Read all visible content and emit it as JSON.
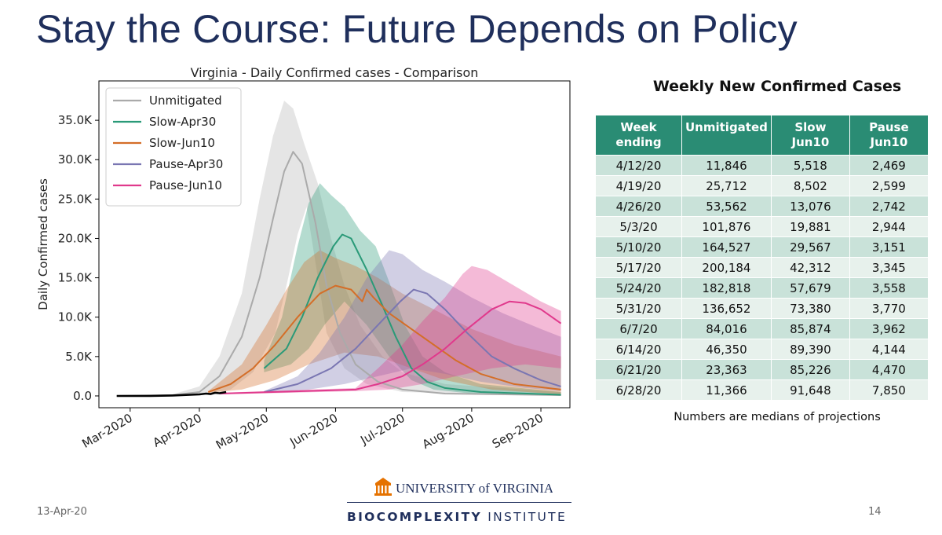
{
  "slide": {
    "title": "Stay the Course: Future Depends on Policy",
    "date": "13-Apr-20",
    "page_number": "14"
  },
  "logo": {
    "university": "UNIVERSITY of VIRGINIA",
    "institute_bold": "BIOCOMPLEXITY",
    "institute_rest": "INSTITUTE",
    "accent": "#e57200",
    "navy": "#1f2f5c"
  },
  "chart_data": {
    "type": "line",
    "title": "Virginia - Daily Confirmed cases - Comparison",
    "xlabel": "",
    "ylabel": "Daily Confirmed cases",
    "ylim": [
      -1500,
      40000
    ],
    "yticks": [
      0,
      5000,
      10000,
      15000,
      20000,
      25000,
      30000,
      35000
    ],
    "ytick_labels": [
      "0.0",
      "5.0K",
      "10.0K",
      "15.0K",
      "20.0K",
      "25.0K",
      "30.0K",
      "35.0K"
    ],
    "xlim": [
      "2020-02-16",
      "2020-09-14"
    ],
    "xticks": [
      "2020-03-01",
      "2020-04-01",
      "2020-05-01",
      "2020-06-01",
      "2020-07-01",
      "2020-08-01",
      "2020-09-01"
    ],
    "xtick_labels": [
      "Mar-2020",
      "Apr-2020",
      "May-2020",
      "Jun-2020",
      "Jul-2020",
      "Aug-2020",
      "Sep-2020"
    ],
    "grid": false,
    "legend": "top-left",
    "series": [
      {
        "name": "Unmitigated",
        "color": "#aaaaaa",
        "median": [
          [
            "2020-02-24",
            0
          ],
          [
            "2020-03-20",
            100
          ],
          [
            "2020-04-01",
            500
          ],
          [
            "2020-04-10",
            2500
          ],
          [
            "2020-04-20",
            7500
          ],
          [
            "2020-04-28",
            15000
          ],
          [
            "2020-05-04",
            22500
          ],
          [
            "2020-05-09",
            28500
          ],
          [
            "2020-05-13",
            31000
          ],
          [
            "2020-05-17",
            29500
          ],
          [
            "2020-05-23",
            22000
          ],
          [
            "2020-05-28",
            14000
          ],
          [
            "2020-06-03",
            8000
          ],
          [
            "2020-06-10",
            4000
          ],
          [
            "2020-06-20",
            1800
          ],
          [
            "2020-07-01",
            800
          ],
          [
            "2020-07-20",
            300
          ],
          [
            "2020-09-10",
            100
          ]
        ],
        "upper": [
          [
            "2020-02-24",
            0
          ],
          [
            "2020-03-20",
            200
          ],
          [
            "2020-04-01",
            1200
          ],
          [
            "2020-04-10",
            5000
          ],
          [
            "2020-04-20",
            13000
          ],
          [
            "2020-04-28",
            25000
          ],
          [
            "2020-05-04",
            33000
          ],
          [
            "2020-05-09",
            37500
          ],
          [
            "2020-05-13",
            36500
          ],
          [
            "2020-05-18",
            32000
          ],
          [
            "2020-05-24",
            27000
          ],
          [
            "2020-05-30",
            20000
          ],
          [
            "2020-06-05",
            14000
          ],
          [
            "2020-06-12",
            9000
          ],
          [
            "2020-06-22",
            5000
          ],
          [
            "2020-07-01",
            3000
          ],
          [
            "2020-07-20",
            1500
          ],
          [
            "2020-09-10",
            500
          ]
        ],
        "lower": [
          [
            "2020-02-24",
            0
          ],
          [
            "2020-04-01",
            50
          ],
          [
            "2020-04-15",
            800
          ],
          [
            "2020-04-25",
            3000
          ],
          [
            "2020-05-05",
            8000
          ],
          [
            "2020-05-10",
            14000
          ],
          [
            "2020-05-15",
            20500
          ],
          [
            "2020-05-19",
            24000
          ],
          [
            "2020-05-23",
            17000
          ],
          [
            "2020-05-28",
            8000
          ],
          [
            "2020-06-05",
            3500
          ],
          [
            "2020-06-15",
            1500
          ],
          [
            "2020-07-01",
            500
          ],
          [
            "2020-09-10",
            50
          ]
        ]
      },
      {
        "name": "Slow-Apr30",
        "color": "#2a9a78",
        "median": [
          [
            "2020-04-30",
            3500
          ],
          [
            "2020-05-10",
            6000
          ],
          [
            "2020-05-17",
            10000
          ],
          [
            "2020-05-24",
            15000
          ],
          [
            "2020-05-31",
            19000
          ],
          [
            "2020-06-04",
            20500
          ],
          [
            "2020-06-08",
            20000
          ],
          [
            "2020-06-15",
            16000
          ],
          [
            "2020-06-22",
            11500
          ],
          [
            "2020-06-28",
            7500
          ],
          [
            "2020-07-05",
            3500
          ],
          [
            "2020-07-12",
            1800
          ],
          [
            "2020-07-20",
            1000
          ],
          [
            "2020-08-05",
            500
          ],
          [
            "2020-09-10",
            150
          ]
        ],
        "upper": [
          [
            "2020-04-30",
            4500
          ],
          [
            "2020-05-08",
            10000
          ],
          [
            "2020-05-15",
            19000
          ],
          [
            "2020-05-20",
            24500
          ],
          [
            "2020-05-25",
            27000
          ],
          [
            "2020-05-30",
            25500
          ],
          [
            "2020-06-05",
            24000
          ],
          [
            "2020-06-12",
            21000
          ],
          [
            "2020-06-19",
            19000
          ],
          [
            "2020-06-25",
            14500
          ],
          [
            "2020-07-02",
            9000
          ],
          [
            "2020-07-10",
            5000
          ],
          [
            "2020-07-20",
            3000
          ],
          [
            "2020-08-05",
            1500
          ],
          [
            "2020-09-10",
            500
          ]
        ],
        "lower": [
          [
            "2020-04-30",
            3000
          ],
          [
            "2020-05-12",
            4000
          ],
          [
            "2020-05-20",
            6000
          ],
          [
            "2020-05-27",
            9000
          ],
          [
            "2020-06-05",
            12000
          ],
          [
            "2020-06-15",
            9000
          ],
          [
            "2020-06-25",
            5000
          ],
          [
            "2020-07-05",
            2000
          ],
          [
            "2020-07-15",
            800
          ],
          [
            "2020-08-01",
            300
          ],
          [
            "2020-09-10",
            50
          ]
        ]
      },
      {
        "name": "Slow-Jun10",
        "color": "#d46e28",
        "median": [
          [
            "2020-04-05",
            500
          ],
          [
            "2020-04-15",
            1500
          ],
          [
            "2020-04-25",
            3500
          ],
          [
            "2020-05-05",
            6500
          ],
          [
            "2020-05-15",
            10000
          ],
          [
            "2020-05-25",
            13000
          ],
          [
            "2020-06-01",
            14000
          ],
          [
            "2020-06-08",
            13500
          ],
          [
            "2020-06-13",
            12000
          ],
          [
            "2020-06-15",
            13500
          ],
          [
            "2020-06-18",
            12500
          ],
          [
            "2020-06-25",
            10500
          ],
          [
            "2020-07-05",
            8500
          ],
          [
            "2020-07-15",
            6500
          ],
          [
            "2020-07-25",
            4500
          ],
          [
            "2020-08-05",
            2800
          ],
          [
            "2020-08-20",
            1500
          ],
          [
            "2020-09-10",
            800
          ]
        ],
        "upper": [
          [
            "2020-04-05",
            600
          ],
          [
            "2020-04-20",
            4000
          ],
          [
            "2020-05-01",
            9000
          ],
          [
            "2020-05-10",
            13500
          ],
          [
            "2020-05-18",
            17000
          ],
          [
            "2020-05-25",
            18500
          ],
          [
            "2020-06-01",
            17500
          ],
          [
            "2020-06-10",
            16500
          ],
          [
            "2020-06-20",
            15000
          ],
          [
            "2020-07-01",
            13000
          ],
          [
            "2020-07-15",
            11000
          ],
          [
            "2020-08-01",
            8500
          ],
          [
            "2020-08-20",
            6500
          ],
          [
            "2020-09-10",
            5000
          ]
        ],
        "lower": [
          [
            "2020-04-05",
            400
          ],
          [
            "2020-04-20",
            800
          ],
          [
            "2020-05-05",
            2000
          ],
          [
            "2020-05-20",
            4000
          ],
          [
            "2020-06-05",
            5500
          ],
          [
            "2020-06-20",
            5000
          ],
          [
            "2020-07-05",
            3500
          ],
          [
            "2020-07-20",
            2000
          ],
          [
            "2020-08-10",
            800
          ],
          [
            "2020-09-10",
            200
          ]
        ]
      },
      {
        "name": "Pause-Apr30",
        "color": "#7a76b2",
        "median": [
          [
            "2020-04-30",
            500
          ],
          [
            "2020-05-15",
            1500
          ],
          [
            "2020-05-30",
            3500
          ],
          [
            "2020-06-10",
            6000
          ],
          [
            "2020-06-20",
            9000
          ],
          [
            "2020-06-30",
            12000
          ],
          [
            "2020-07-06",
            13500
          ],
          [
            "2020-07-12",
            13000
          ],
          [
            "2020-07-20",
            11000
          ],
          [
            "2020-07-30",
            8000
          ],
          [
            "2020-08-10",
            5000
          ],
          [
            "2020-08-20",
            3500
          ],
          [
            "2020-09-01",
            2000
          ],
          [
            "2020-09-10",
            1200
          ]
        ],
        "upper": [
          [
            "2020-04-30",
            600
          ],
          [
            "2020-05-15",
            2500
          ],
          [
            "2020-05-25",
            5500
          ],
          [
            "2020-06-05",
            10000
          ],
          [
            "2020-06-15",
            15000
          ],
          [
            "2020-06-25",
            18500
          ],
          [
            "2020-07-01",
            18000
          ],
          [
            "2020-07-10",
            16000
          ],
          [
            "2020-07-20",
            14500
          ],
          [
            "2020-08-01",
            12500
          ],
          [
            "2020-08-15",
            10500
          ],
          [
            "2020-09-01",
            8500
          ],
          [
            "2020-09-10",
            7500
          ]
        ],
        "lower": [
          [
            "2020-04-30",
            400
          ],
          [
            "2020-05-20",
            800
          ],
          [
            "2020-06-05",
            1500
          ],
          [
            "2020-06-20",
            2500
          ],
          [
            "2020-07-05",
            3500
          ],
          [
            "2020-07-20",
            2800
          ],
          [
            "2020-08-05",
            1800
          ],
          [
            "2020-08-25",
            1000
          ],
          [
            "2020-09-10",
            600
          ]
        ]
      },
      {
        "name": "Pause-Jun10",
        "color": "#e0398c",
        "median": [
          [
            "2020-04-10",
            300
          ],
          [
            "2020-06-10",
            800
          ],
          [
            "2020-06-20",
            1500
          ],
          [
            "2020-07-01",
            2500
          ],
          [
            "2020-07-10",
            4000
          ],
          [
            "2020-07-20",
            6000
          ],
          [
            "2020-07-30",
            8500
          ],
          [
            "2020-08-10",
            11000
          ],
          [
            "2020-08-18",
            12000
          ],
          [
            "2020-08-25",
            11800
          ],
          [
            "2020-09-01",
            11000
          ],
          [
            "2020-09-10",
            9200
          ]
        ],
        "upper": [
          [
            "2020-04-10",
            400
          ],
          [
            "2020-06-10",
            1000
          ],
          [
            "2020-06-20",
            3500
          ],
          [
            "2020-07-01",
            6500
          ],
          [
            "2020-07-10",
            9500
          ],
          [
            "2020-07-20",
            12500
          ],
          [
            "2020-07-28",
            15500
          ],
          [
            "2020-08-01",
            16500
          ],
          [
            "2020-08-08",
            16000
          ],
          [
            "2020-08-20",
            14000
          ],
          [
            "2020-09-01",
            12000
          ],
          [
            "2020-09-10",
            10800
          ]
        ],
        "lower": [
          [
            "2020-04-10",
            200
          ],
          [
            "2020-06-10",
            600
          ],
          [
            "2020-06-25",
            800
          ],
          [
            "2020-07-10",
            1500
          ],
          [
            "2020-07-25",
            2500
          ],
          [
            "2020-08-10",
            3500
          ],
          [
            "2020-08-25",
            4000
          ],
          [
            "2020-09-10",
            3500
          ]
        ]
      }
    ],
    "observed": {
      "color": "#000000",
      "points": [
        [
          "2020-02-24",
          0
        ],
        [
          "2020-03-10",
          10
        ],
        [
          "2020-03-20",
          60
        ],
        [
          "2020-03-28",
          150
        ],
        [
          "2020-04-01",
          200
        ],
        [
          "2020-04-04",
          300
        ],
        [
          "2020-04-06",
          250
        ],
        [
          "2020-04-08",
          400
        ],
        [
          "2020-04-10",
          350
        ],
        [
          "2020-04-12",
          450
        ],
        [
          "2020-04-13",
          500
        ]
      ]
    }
  },
  "table": {
    "title": "Weekly New Confirmed Cases",
    "columns": [
      [
        "Week",
        "ending"
      ],
      [
        "Unmitigated"
      ],
      [
        "Slow",
        "Jun10"
      ],
      [
        "Pause",
        "Jun10"
      ]
    ],
    "rows": [
      [
        "4/12/20",
        "11,846",
        "5,518",
        "2,469"
      ],
      [
        "4/19/20",
        "25,712",
        "8,502",
        "2,599"
      ],
      [
        "4/26/20",
        "53,562",
        "13,076",
        "2,742"
      ],
      [
        "5/3/20",
        "101,876",
        "19,881",
        "2,944"
      ],
      [
        "5/10/20",
        "164,527",
        "29,567",
        "3,151"
      ],
      [
        "5/17/20",
        "200,184",
        "42,312",
        "3,345"
      ],
      [
        "5/24/20",
        "182,818",
        "57,679",
        "3,558"
      ],
      [
        "5/31/20",
        "136,652",
        "73,380",
        "3,770"
      ],
      [
        "6/7/20",
        "84,016",
        "85,874",
        "3,962"
      ],
      [
        "6/14/20",
        "46,350",
        "89,390",
        "4,144"
      ],
      [
        "6/21/20",
        "23,363",
        "85,226",
        "4,470"
      ],
      [
        "6/28/20",
        "11,366",
        "91,648",
        "7,850"
      ]
    ],
    "note": "Numbers are medians of projections",
    "header_color": "#2a8c74"
  }
}
